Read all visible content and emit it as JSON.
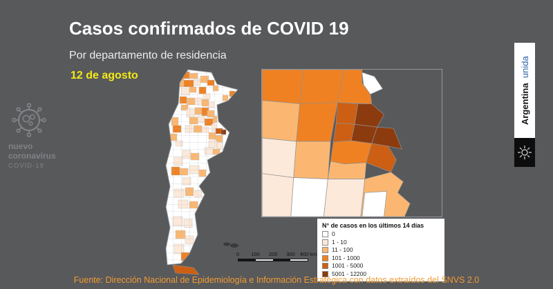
{
  "colors": {
    "background": "#58595b",
    "title": "#ffffff",
    "subtitle": "#ededee",
    "date": "#f3ea15",
    "footer": "#f19b33",
    "virus": "#808285",
    "banner_bg": "#ffffff",
    "banner_argentina": "#161616",
    "banner_unida": "#2e64a8",
    "map_border": "#919396",
    "water": "#58595b"
  },
  "header": {
    "title": "Casos confirmados de COVID 19",
    "subtitle": "Por departamento de residencia",
    "date": "12 de agosto"
  },
  "virus_badge": {
    "line1": "nuevo",
    "line2": "coronavirus",
    "line3": "COVID-19"
  },
  "legend": {
    "title": "N° de casos en los últimos 14 días",
    "items": [
      {
        "label": "0",
        "color": "#ffffff"
      },
      {
        "label": "1 - 10",
        "color": "#fde9d9"
      },
      {
        "label": "11 - 100",
        "color": "#fbb771"
      },
      {
        "label": "101 - 1000",
        "color": "#f08122"
      },
      {
        "label": "1001 - 5000",
        "color": "#cc5f14"
      },
      {
        "label": "5001 - 12200",
        "color": "#8c3b0e"
      }
    ]
  },
  "scale_bar": {
    "labels": [
      "0",
      "100",
      "200",
      "300",
      "400 km"
    ]
  },
  "banner": {
    "argentina": "Argentina",
    "unida": "unida"
  },
  "footer": {
    "source": "Fuente: Dirección Nacional de Epidemiología e Información Estratégica con datos extraídos del SNVS 2.0"
  }
}
